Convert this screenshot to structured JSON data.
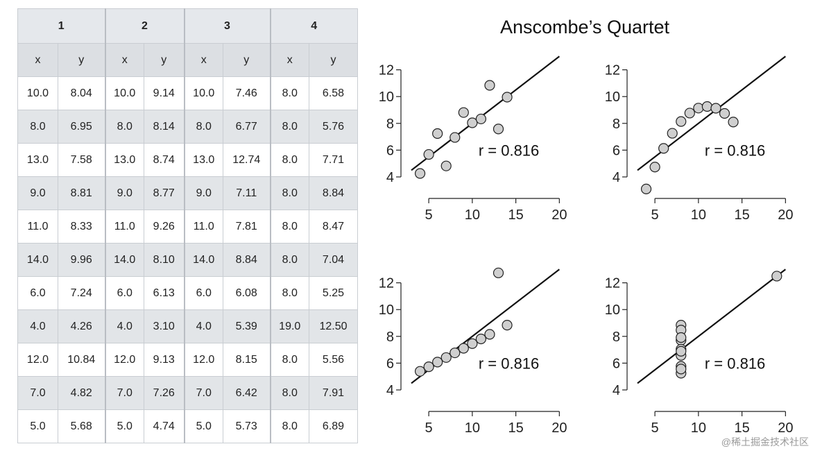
{
  "table": {
    "groups": [
      "1",
      "2",
      "3",
      "4"
    ],
    "subheaders": [
      "x",
      "y",
      "x",
      "y",
      "x",
      "y",
      "x",
      "y"
    ],
    "rows": [
      [
        "10.0",
        "8.04",
        "10.0",
        "9.14",
        "10.0",
        "7.46",
        "8.0",
        "6.58"
      ],
      [
        "8.0",
        "6.95",
        "8.0",
        "8.14",
        "8.0",
        "6.77",
        "8.0",
        "5.76"
      ],
      [
        "13.0",
        "7.58",
        "13.0",
        "8.74",
        "13.0",
        "12.74",
        "8.0",
        "7.71"
      ],
      [
        "9.0",
        "8.81",
        "9.0",
        "8.77",
        "9.0",
        "7.11",
        "8.0",
        "8.84"
      ],
      [
        "11.0",
        "8.33",
        "11.0",
        "9.26",
        "11.0",
        "7.81",
        "8.0",
        "8.47"
      ],
      [
        "14.0",
        "9.96",
        "14.0",
        "8.10",
        "14.0",
        "8.84",
        "8.0",
        "7.04"
      ],
      [
        "6.0",
        "7.24",
        "6.0",
        "6.13",
        "6.0",
        "6.08",
        "8.0",
        "5.25"
      ],
      [
        "4.0",
        "4.26",
        "4.0",
        "3.10",
        "4.0",
        "5.39",
        "19.0",
        "12.50"
      ],
      [
        "12.0",
        "10.84",
        "12.0",
        "9.13",
        "12.0",
        "8.15",
        "8.0",
        "5.56"
      ],
      [
        "7.0",
        "4.82",
        "7.0",
        "7.26",
        "7.0",
        "6.42",
        "8.0",
        "7.91"
      ],
      [
        "5.0",
        "5.68",
        "5.0",
        "4.74",
        "5.0",
        "5.73",
        "8.0",
        "6.89"
      ]
    ]
  },
  "chart_title": "Anscombe’s Quartet",
  "chart_data": [
    {
      "type": "scatter",
      "title": "",
      "annotation": "r = 0.816",
      "xlim": [
        3,
        20
      ],
      "ylim": [
        4,
        13
      ],
      "xticks": [
        5,
        10,
        15,
        20
      ],
      "yticks": [
        4,
        6,
        8,
        10,
        12
      ],
      "x": [
        10,
        8,
        13,
        9,
        11,
        14,
        6,
        4,
        12,
        7,
        5
      ],
      "y": [
        8.04,
        6.95,
        7.58,
        8.81,
        8.33,
        9.96,
        7.24,
        4.26,
        10.84,
        4.82,
        5.68
      ],
      "fit": {
        "intercept": 3.0,
        "slope": 0.5
      }
    },
    {
      "type": "scatter",
      "title": "",
      "annotation": "r = 0.816",
      "xlim": [
        3,
        20
      ],
      "ylim": [
        3,
        13
      ],
      "xticks": [
        5,
        10,
        15,
        20
      ],
      "yticks": [
        4,
        6,
        8,
        10,
        12
      ],
      "x": [
        10,
        8,
        13,
        9,
        11,
        14,
        6,
        4,
        12,
        7,
        5
      ],
      "y": [
        9.14,
        8.14,
        8.74,
        8.77,
        9.26,
        8.1,
        6.13,
        3.1,
        9.13,
        7.26,
        4.74
      ],
      "fit": {
        "intercept": 3.0,
        "slope": 0.5
      }
    },
    {
      "type": "scatter",
      "title": "",
      "annotation": "r = 0.816",
      "xlim": [
        3,
        20
      ],
      "ylim": [
        4,
        13
      ],
      "xticks": [
        5,
        10,
        15,
        20
      ],
      "yticks": [
        4,
        6,
        8,
        10,
        12
      ],
      "x": [
        10,
        8,
        13,
        9,
        11,
        14,
        6,
        4,
        12,
        7,
        5
      ],
      "y": [
        7.46,
        6.77,
        12.74,
        7.11,
        7.81,
        8.84,
        6.08,
        5.39,
        8.15,
        6.42,
        5.73
      ],
      "fit": {
        "intercept": 3.0,
        "slope": 0.5
      }
    },
    {
      "type": "scatter",
      "title": "",
      "annotation": "r = 0.816",
      "xlim": [
        3,
        20
      ],
      "ylim": [
        4,
        13
      ],
      "xticks": [
        5,
        10,
        15,
        20
      ],
      "yticks": [
        4,
        6,
        8,
        10,
        12
      ],
      "x": [
        8,
        8,
        8,
        8,
        8,
        8,
        8,
        19,
        8,
        8,
        8
      ],
      "y": [
        6.58,
        5.76,
        7.71,
        8.84,
        8.47,
        7.04,
        5.25,
        12.5,
        5.56,
        7.91,
        6.89
      ],
      "fit": {
        "intercept": 3.0,
        "slope": 0.5
      }
    }
  ],
  "watermark": "@稀土掘金技术社区",
  "colors": {
    "point_fill": "#cfcfcf",
    "point_stroke": "#222222",
    "line": "#111111"
  }
}
